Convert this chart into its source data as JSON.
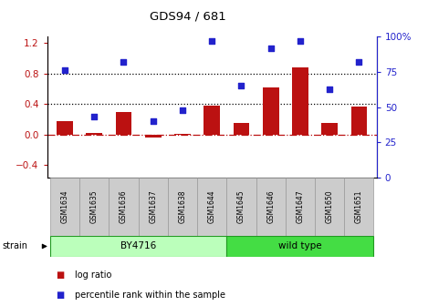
{
  "title": "GDS94 / 681",
  "samples": [
    "GSM1634",
    "GSM1635",
    "GSM1636",
    "GSM1637",
    "GSM1638",
    "GSM1644",
    "GSM1645",
    "GSM1646",
    "GSM1647",
    "GSM1650",
    "GSM1651"
  ],
  "log_ratio": [
    0.18,
    0.02,
    0.3,
    -0.04,
    0.01,
    0.38,
    0.15,
    0.62,
    0.88,
    0.15,
    0.37
  ],
  "percentile_rank": [
    76,
    43,
    82,
    40,
    48,
    97,
    65,
    92,
    97,
    63,
    82
  ],
  "bar_color": "#bb1111",
  "dot_color": "#2222cc",
  "ylim_left": [
    -0.56,
    1.28
  ],
  "ylim_right": [
    0,
    100
  ],
  "yticks_left": [
    -0.4,
    0.0,
    0.4,
    0.8,
    1.2
  ],
  "yticks_right": [
    0,
    25,
    50,
    75,
    100
  ],
  "hlines_dotted": [
    0.4,
    0.8
  ],
  "hline_dashdot": 0.0,
  "strain_groups": [
    {
      "label": "BY4716",
      "start": 0,
      "end": 6,
      "color": "#bbffbb"
    },
    {
      "label": "wild type",
      "start": 6,
      "end": 11,
      "color": "#44dd44"
    }
  ],
  "legend_items": [
    {
      "label": "log ratio",
      "color": "#bb1111"
    },
    {
      "label": "percentile rank within the sample",
      "color": "#2222cc"
    }
  ],
  "strain_label": "strain",
  "box_color": "#cccccc",
  "box_edge_color": "#999999"
}
